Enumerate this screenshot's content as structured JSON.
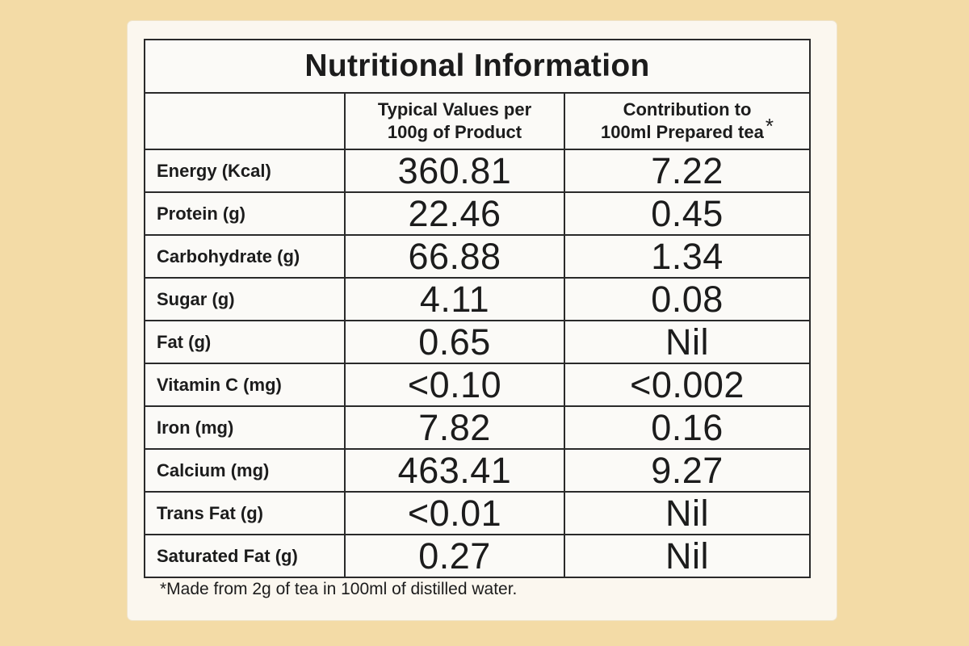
{
  "table": {
    "title": "Nutritional Information",
    "header": {
      "col1_line1": "Typical Values per",
      "col1_line2": "100g of Product",
      "col2_line1": "Contribution to",
      "col2_line2": "100ml Prepared tea",
      "col2_marker": "*"
    },
    "rows": [
      {
        "nutrient": "Energy (Kcal)",
        "per_100g": "360.81",
        "per_100ml": "7.22"
      },
      {
        "nutrient": "Protein (g)",
        "per_100g": "22.46",
        "per_100ml": "0.45"
      },
      {
        "nutrient": "Carbohydrate (g)",
        "per_100g": "66.88",
        "per_100ml": "1.34"
      },
      {
        "nutrient": "Sugar (g)",
        "per_100g": "4.11",
        "per_100ml": "0.08"
      },
      {
        "nutrient": "Fat (g)",
        "per_100g": "0.65",
        "per_100ml": "Nil"
      },
      {
        "nutrient": "Vitamin C (mg)",
        "per_100g": "<0.10",
        "per_100ml": "<0.002"
      },
      {
        "nutrient": "Iron (mg)",
        "per_100g": "7.82",
        "per_100ml": "0.16"
      },
      {
        "nutrient": "Calcium (mg)",
        "per_100g": "463.41",
        "per_100ml": "9.27"
      },
      {
        "nutrient": "Trans Fat (g)",
        "per_100g": "<0.01",
        "per_100ml": "Nil"
      },
      {
        "nutrient": "Saturated Fat (g)",
        "per_100g": "0.27",
        "per_100ml": "Nil"
      }
    ],
    "footnote": "*Made from 2g of tea in 100ml of distilled water."
  },
  "colors": {
    "background": "#f3dba6",
    "card": "#fbf7ef",
    "ink": "#1c1c1c"
  }
}
